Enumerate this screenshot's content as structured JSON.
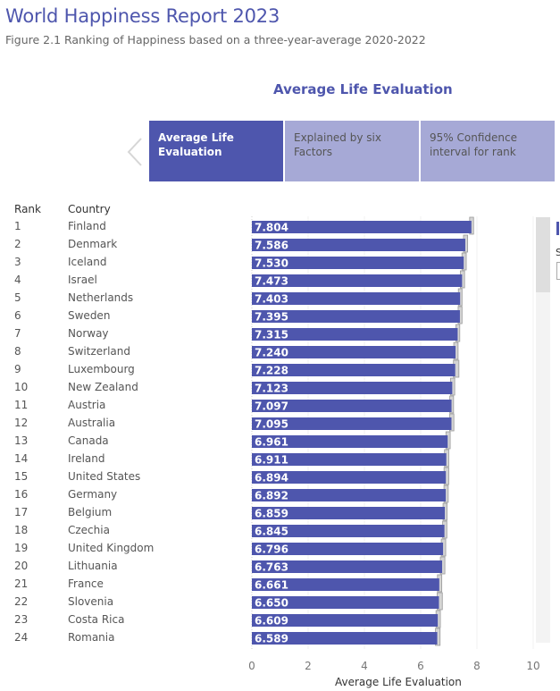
{
  "header": {
    "title": "World Happiness Report 2023",
    "subtitle": "Figure 2.1 Ranking of Happiness based on a three-year-average 2020-2022",
    "section_title": "Average Life Evaluation"
  },
  "tabs": [
    {
      "label_line1": "Average Life",
      "label_line2": "Evaluation",
      "active": true
    },
    {
      "label_line1": "Explained by six",
      "label_line2": "Factors",
      "active": false
    },
    {
      "label_line1": "95% Confidence",
      "label_line2": "interval for rank",
      "active": false
    }
  ],
  "nav": {
    "prev_icon": "chevron-left-icon"
  },
  "colors": {
    "accent": "#4e56ad",
    "tab_inactive": "#a6a9d6",
    "whisker": "#c8c8c8"
  },
  "table": {
    "rank_header": "Rank",
    "country_header": "Country"
  },
  "side_panel": {
    "label": "S"
  },
  "chart_data": {
    "type": "bar",
    "orientation": "horizontal",
    "title": "Average Life Evaluation",
    "xlabel": "Average Life Evaluation",
    "ylabel": "",
    "xlim": [
      0,
      10
    ],
    "xticks": [
      0,
      2,
      4,
      6,
      8,
      10
    ],
    "grid": true,
    "categories": [
      "Finland",
      "Denmark",
      "Iceland",
      "Israel",
      "Netherlands",
      "Sweden",
      "Norway",
      "Switzerland",
      "Luxembourg",
      "New Zealand",
      "Austria",
      "Australia",
      "Canada",
      "Ireland",
      "United States",
      "Germany",
      "Belgium",
      "Czechia",
      "United Kingdom",
      "Lithuania",
      "France",
      "Slovenia",
      "Costa Rica",
      "Romania"
    ],
    "ranks": [
      1,
      2,
      3,
      4,
      5,
      6,
      7,
      8,
      9,
      10,
      11,
      12,
      13,
      14,
      15,
      16,
      17,
      18,
      19,
      20,
      21,
      22,
      23,
      24
    ],
    "values": [
      7.804,
      7.586,
      7.53,
      7.473,
      7.403,
      7.395,
      7.315,
      7.24,
      7.228,
      7.123,
      7.097,
      7.095,
      6.961,
      6.911,
      6.894,
      6.892,
      6.859,
      6.845,
      6.796,
      6.763,
      6.661,
      6.65,
      6.609,
      6.589
    ],
    "ci_upper": [
      7.88,
      7.67,
      7.62,
      7.56,
      7.47,
      7.47,
      7.39,
      7.33,
      7.36,
      7.21,
      7.17,
      7.18,
      7.05,
      7.0,
      7.0,
      6.98,
      6.94,
      6.93,
      6.89,
      6.86,
      6.75,
      6.77,
      6.7,
      6.69
    ],
    "data_labels": [
      "7.804",
      "7.586",
      "7.530",
      "7.473",
      "7.403",
      "7.395",
      "7.315",
      "7.240",
      "7.228",
      "7.123",
      "7.097",
      "7.095",
      "6.961",
      "6.911",
      "6.894",
      "6.892",
      "6.859",
      "6.845",
      "6.796",
      "6.763",
      "6.661",
      "6.650",
      "6.609",
      "6.589"
    ]
  }
}
